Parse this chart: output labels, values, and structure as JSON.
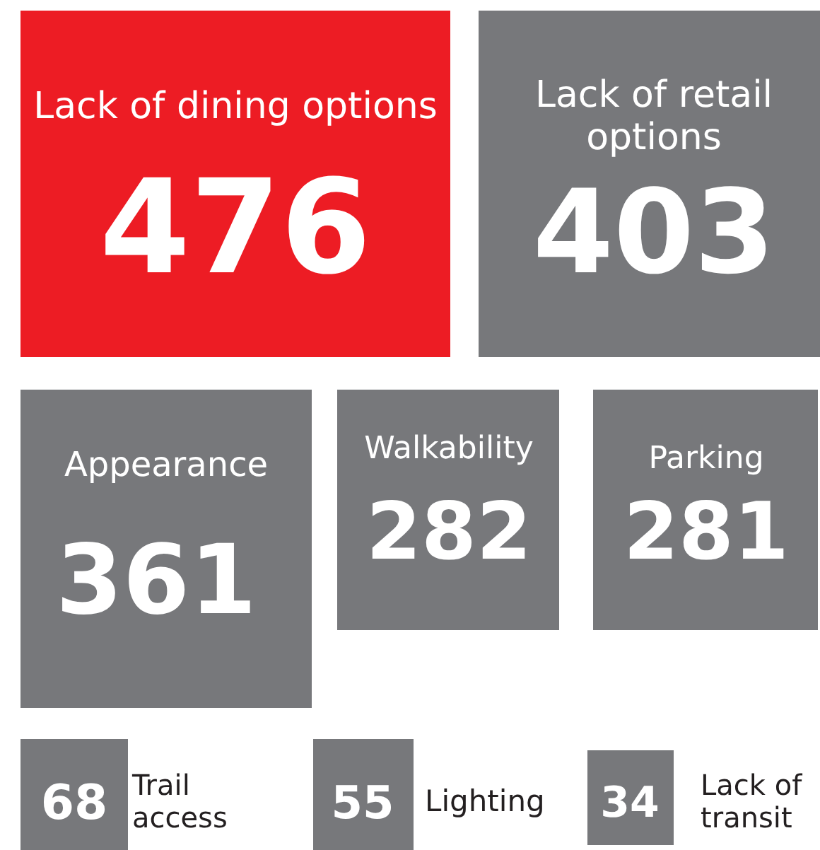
{
  "chart_data": {
    "type": "other",
    "categories": [
      "Lack of dining options",
      "Lack of retail options",
      "Appearance",
      "Walkability",
      "Parking",
      "Trail access",
      "Lighting",
      "Lack of transit"
    ],
    "values": [
      476,
      403,
      361,
      282,
      281,
      68,
      55,
      34
    ],
    "colors": [
      "#ed1c24",
      "#77787b",
      "#77787b",
      "#77787b",
      "#77787b",
      "#77787b",
      "#77787b",
      "#77787b"
    ],
    "data_labels": true
  }
}
